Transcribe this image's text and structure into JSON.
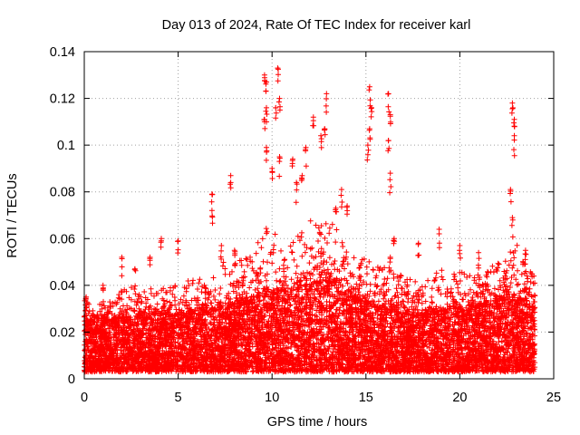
{
  "chart_data": {
    "type": "scatter",
    "title": "Day 013 of 2024, Rate Of TEC Index for receiver karl",
    "xlabel": "GPS time / hours",
    "ylabel": "ROTI / TECUs",
    "xlim": [
      0,
      25
    ],
    "ylim": [
      0,
      0.14
    ],
    "xticks": [
      0,
      5,
      10,
      15,
      20,
      25
    ],
    "yticks": [
      0,
      0.02,
      0.04,
      0.06,
      0.08,
      0.1,
      0.12,
      0.14
    ],
    "grid": true,
    "marker": "plus",
    "marker_color": "#ff0000",
    "axis_color": "#000000",
    "grid_color": "#a0a0a0",
    "x_data_range": [
      0,
      24
    ],
    "notable_points": [
      {
        "x": 9.6,
        "y": 0.13
      },
      {
        "x": 9.7,
        "y": 0.127
      },
      {
        "x": 10.3,
        "y": 0.133
      },
      {
        "x": 10.4,
        "y": 0.12
      },
      {
        "x": 9.7,
        "y": 0.116
      },
      {
        "x": 9.6,
        "y": 0.111
      },
      {
        "x": 10.2,
        "y": 0.116
      },
      {
        "x": 12.9,
        "y": 0.122
      },
      {
        "x": 12.8,
        "y": 0.107
      },
      {
        "x": 12.6,
        "y": 0.104
      },
      {
        "x": 12.2,
        "y": 0.112
      },
      {
        "x": 11.8,
        "y": 0.099
      },
      {
        "x": 11.6,
        "y": 0.087
      },
      {
        "x": 15.2,
        "y": 0.125
      },
      {
        "x": 15.3,
        "y": 0.116
      },
      {
        "x": 15.2,
        "y": 0.107
      },
      {
        "x": 15.1,
        "y": 0.1
      },
      {
        "x": 16.2,
        "y": 0.122
      },
      {
        "x": 16.3,
        "y": 0.113
      },
      {
        "x": 16.2,
        "y": 0.102
      },
      {
        "x": 16.3,
        "y": 0.088
      },
      {
        "x": 22.8,
        "y": 0.118
      },
      {
        "x": 22.9,
        "y": 0.111
      },
      {
        "x": 22.9,
        "y": 0.104
      },
      {
        "x": 22.7,
        "y": 0.081
      },
      {
        "x": 22.8,
        "y": 0.069
      },
      {
        "x": 7.8,
        "y": 0.087
      },
      {
        "x": 6.8,
        "y": 0.079
      },
      {
        "x": 6.8,
        "y": 0.072
      },
      {
        "x": 9.7,
        "y": 0.099
      },
      {
        "x": 10.0,
        "y": 0.09
      },
      {
        "x": 10.4,
        "y": 0.095
      },
      {
        "x": 11.1,
        "y": 0.094
      },
      {
        "x": 11.3,
        "y": 0.084
      },
      {
        "x": 13.7,
        "y": 0.081
      },
      {
        "x": 13.4,
        "y": 0.073
      },
      {
        "x": 14.0,
        "y": 0.074
      },
      {
        "x": 16.5,
        "y": 0.06
      },
      {
        "x": 16.3,
        "y": 0.052
      },
      {
        "x": 18.9,
        "y": 0.064
      },
      {
        "x": 17.8,
        "y": 0.058
      },
      {
        "x": 20.0,
        "y": 0.057
      },
      {
        "x": 21.0,
        "y": 0.054
      },
      {
        "x": 23.5,
        "y": 0.055
      },
      {
        "x": 4.1,
        "y": 0.06
      },
      {
        "x": 5.0,
        "y": 0.059
      },
      {
        "x": 2.0,
        "y": 0.052
      },
      {
        "x": 3.5,
        "y": 0.052
      },
      {
        "x": 7.3,
        "y": 0.057
      },
      {
        "x": 8.0,
        "y": 0.055
      },
      {
        "x": 0.1,
        "y": 0.035
      },
      {
        "x": 1.0,
        "y": 0.04
      },
      {
        "x": 2.7,
        "y": 0.047
      }
    ],
    "envelope": {
      "x": [
        0,
        0.5,
        1,
        1.5,
        2,
        2.5,
        3,
        3.5,
        4,
        4.5,
        5,
        5.5,
        6,
        6.5,
        7,
        7.5,
        8,
        8.5,
        9,
        9.5,
        10,
        10.5,
        11,
        11.5,
        12,
        12.5,
        13,
        13.5,
        14,
        14.5,
        15,
        15.5,
        16,
        16.5,
        17,
        17.5,
        18,
        18.5,
        19,
        19.5,
        20,
        20.5,
        21,
        21.5,
        22,
        22.5,
        23,
        23.5,
        24
      ],
      "low": [
        0.003,
        0.003,
        0.003,
        0.003,
        0.003,
        0.003,
        0.003,
        0.003,
        0.003,
        0.003,
        0.003,
        0.003,
        0.003,
        0.003,
        0.003,
        0.003,
        0.003,
        0.003,
        0.003,
        0.003,
        0.003,
        0.003,
        0.003,
        0.003,
        0.003,
        0.003,
        0.003,
        0.003,
        0.003,
        0.003,
        0.003,
        0.003,
        0.003,
        0.003,
        0.003,
        0.003,
        0.003,
        0.003,
        0.003,
        0.003,
        0.003,
        0.003,
        0.003,
        0.003,
        0.003,
        0.003,
        0.003,
        0.003,
        0.003
      ],
      "dense_high": [
        0.025,
        0.024,
        0.026,
        0.025,
        0.026,
        0.027,
        0.026,
        0.027,
        0.028,
        0.027,
        0.027,
        0.028,
        0.028,
        0.029,
        0.03,
        0.031,
        0.032,
        0.033,
        0.034,
        0.037,
        0.038,
        0.038,
        0.037,
        0.039,
        0.04,
        0.041,
        0.042,
        0.041,
        0.038,
        0.035,
        0.033,
        0.031,
        0.03,
        0.029,
        0.028,
        0.027,
        0.027,
        0.028,
        0.029,
        0.03,
        0.03,
        0.029,
        0.031,
        0.032,
        0.034,
        0.035,
        0.035,
        0.033,
        0.03
      ],
      "sparse_high": [
        0.034,
        0.03,
        0.036,
        0.033,
        0.038,
        0.04,
        0.037,
        0.04,
        0.042,
        0.04,
        0.041,
        0.042,
        0.043,
        0.044,
        0.052,
        0.051,
        0.05,
        0.052,
        0.055,
        0.062,
        0.07,
        0.065,
        0.063,
        0.066,
        0.068,
        0.066,
        0.068,
        0.064,
        0.058,
        0.05,
        0.052,
        0.048,
        0.05,
        0.045,
        0.044,
        0.042,
        0.041,
        0.043,
        0.048,
        0.045,
        0.046,
        0.044,
        0.046,
        0.047,
        0.05,
        0.052,
        0.058,
        0.052,
        0.046
      ]
    },
    "bulk_point_count": 9000
  }
}
